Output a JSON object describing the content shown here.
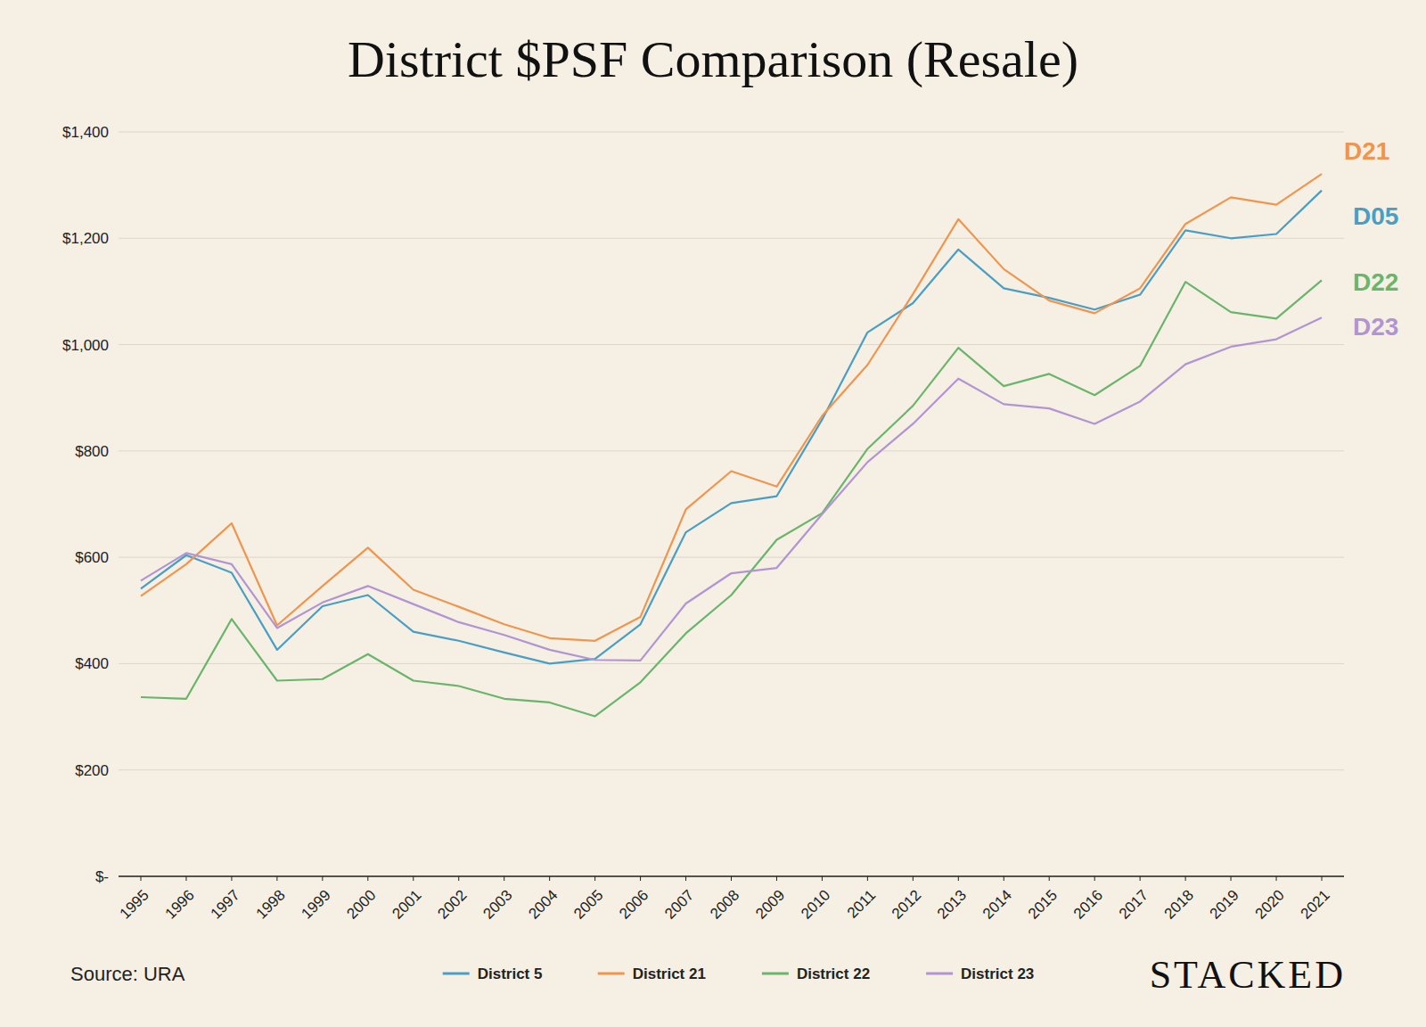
{
  "chart_data": {
    "type": "line",
    "title": "District $PSF Comparison (Resale)",
    "source": "Source: URA",
    "logo": "STACKED",
    "categories": [
      "1995",
      "1996",
      "1997",
      "1998",
      "1999",
      "2000",
      "2001",
      "2002",
      "2003",
      "2004",
      "2005",
      "2006",
      "2007",
      "2008",
      "2009",
      "2010",
      "2011",
      "2012",
      "2013",
      "2014",
      "2015",
      "2016",
      "2017",
      "2018",
      "2019",
      "2020",
      "2021"
    ],
    "series": [
      {
        "name": "District 5",
        "label": "D05",
        "color": "#4a9ec4",
        "values": [
          541,
          604,
          571,
          426,
          508,
          529,
          460,
          443,
          421,
          400,
          409,
          474,
          647,
          702,
          715,
          859,
          1023,
          1078,
          1179,
          1106,
          1088,
          1066,
          1094,
          1215,
          1200,
          1208,
          1290
        ]
      },
      {
        "name": "District 21",
        "label": "D21",
        "color": "#f0954f",
        "values": [
          527,
          587,
          664,
          472,
          546,
          618,
          539,
          507,
          474,
          448,
          443,
          488,
          690,
          762,
          733,
          866,
          962,
          1095,
          1236,
          1142,
          1083,
          1059,
          1106,
          1227,
          1277,
          1263,
          1321
        ]
      },
      {
        "name": "District 22",
        "label": "D22",
        "color": "#6ab56b",
        "values": [
          337,
          334,
          484,
          368,
          371,
          418,
          368,
          358,
          334,
          327,
          301,
          365,
          457,
          529,
          633,
          683,
          804,
          885,
          994,
          922,
          945,
          905,
          960,
          1118,
          1061,
          1049,
          1121
        ]
      },
      {
        "name": "District 23",
        "label": "D23",
        "color": "#b294d3",
        "values": [
          556,
          608,
          587,
          467,
          515,
          546,
          512,
          478,
          454,
          426,
          407,
          406,
          513,
          570,
          580,
          681,
          779,
          851,
          936,
          888,
          880,
          851,
          893,
          963,
          996,
          1010,
          1051
        ]
      }
    ],
    "ylim": [
      0,
      1400
    ],
    "yticks": [
      {
        "value": 0,
        "label": "$-"
      },
      {
        "value": 200,
        "label": "$200"
      },
      {
        "value": 400,
        "label": "$400"
      },
      {
        "value": 600,
        "label": "$600"
      },
      {
        "value": 800,
        "label": "$800"
      },
      {
        "value": 1000,
        "label": "$1,000"
      },
      {
        "value": 1200,
        "label": "$1,200"
      },
      {
        "value": 1400,
        "label": "$1,400"
      }
    ],
    "grid": true,
    "legend": "bottom"
  }
}
